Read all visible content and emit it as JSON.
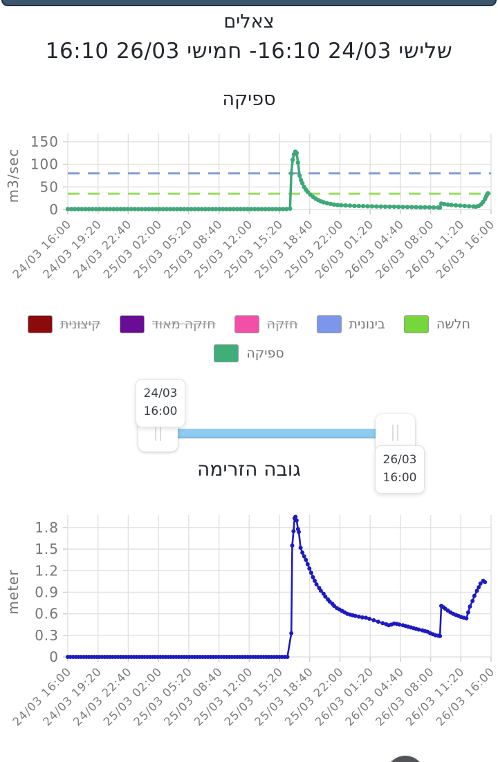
{
  "navbar": {
    "color": "#3d566e"
  },
  "header": {
    "title": "צאלים",
    "subtitle": "שלישי 24/03 16:10- חמישי 26/03 16:10"
  },
  "legend": {
    "levels": [
      {
        "key": "weak",
        "label": "חלשה",
        "color": "#76d63c",
        "struck": false
      },
      {
        "key": "medium",
        "label": "בינונית",
        "color": "#7b96ea",
        "struck": false
      },
      {
        "key": "strong",
        "label": "חזקה",
        "color": "#f24fa8",
        "struck": true
      },
      {
        "key": "very-strong",
        "label": "חזקה מאוד",
        "color": "#6a0d96",
        "struck": true
      },
      {
        "key": "extreme",
        "label": "קיצונית",
        "color": "#8b0a0a",
        "struck": true
      }
    ],
    "series": [
      {
        "key": "discharge",
        "label": "ספיקה",
        "color": "#3fae79",
        "struck": false
      }
    ]
  },
  "range_slider": {
    "start_tooltip": {
      "date": "24/03",
      "time": "16:00"
    },
    "end_tooltip": {
      "date": "26/03",
      "time": "16:00"
    },
    "track_color": "#8ecbf0"
  },
  "fab": {
    "color": "#53535a"
  },
  "chart_data": [
    {
      "id": "discharge",
      "type": "line",
      "title": "ספיקה",
      "ylabel": "m3/sec",
      "yticks": [
        0,
        50,
        100,
        150
      ],
      "ylim": [
        0,
        160
      ],
      "grid": true,
      "line_color": "#3fa878",
      "x_hours_total": 48,
      "xticklabels": [
        "24/03 16:00",
        "24/03 19:20",
        "24/03 22:40",
        "25/03 02:00",
        "25/03 05:20",
        "25/03 08:40",
        "25/03 12:00",
        "25/03 15:20",
        "25/03 18:40",
        "25/03 22:00",
        "26/03 01:20",
        "26/03 04:40",
        "26/03 08:00",
        "26/03 11:20",
        "26/03 16:00"
      ],
      "thresholds": [
        {
          "label": "בינונית",
          "value": 80,
          "color": "#7f9ed6"
        },
        {
          "label": "חלשה",
          "value": 35,
          "color": "#97df5a"
        }
      ],
      "flat": {
        "t0": 0,
        "t1": 25.0,
        "v": 1,
        "step": 0.4
      },
      "points": [
        [
          25.2,
          2
        ],
        [
          25.35,
          80
        ],
        [
          25.5,
          110
        ],
        [
          25.65,
          122
        ],
        [
          25.8,
          128
        ],
        [
          25.95,
          125
        ],
        [
          26.1,
          104
        ],
        [
          26.3,
          75
        ],
        [
          26.45,
          65
        ],
        [
          26.6,
          58
        ],
        [
          26.8,
          50
        ],
        [
          27,
          44
        ],
        [
          27.2,
          39
        ],
        [
          27.5,
          33
        ],
        [
          27.8,
          28
        ],
        [
          28.1,
          24
        ],
        [
          28.4,
          21
        ],
        [
          28.7,
          18
        ],
        [
          29,
          16
        ],
        [
          29.4,
          14
        ],
        [
          29.8,
          12.5
        ],
        [
          30.2,
          11
        ],
        [
          30.6,
          10
        ],
        [
          31,
          9.5
        ],
        [
          31.5,
          9
        ],
        [
          32,
          8.5
        ],
        [
          32.5,
          8
        ],
        [
          33,
          7.8
        ],
        [
          33.5,
          7.5
        ],
        [
          34,
          7.2
        ],
        [
          34.5,
          7
        ],
        [
          35,
          6.8
        ],
        [
          35.5,
          6.6
        ],
        [
          36,
          6.5
        ],
        [
          36.5,
          6.3
        ],
        [
          37,
          6.2
        ],
        [
          37.5,
          6
        ],
        [
          38,
          5.8
        ],
        [
          38.5,
          5.6
        ],
        [
          39,
          5.5
        ],
        [
          39.5,
          5.3
        ],
        [
          40,
          5.1
        ],
        [
          40.5,
          5
        ],
        [
          41,
          4.8
        ],
        [
          41.5,
          4.6
        ],
        [
          42,
          4.4
        ],
        [
          42.2,
          4.2
        ],
        [
          42.35,
          13
        ],
        [
          42.7,
          12
        ],
        [
          43.1,
          11
        ],
        [
          43.5,
          10
        ],
        [
          44,
          9.2
        ],
        [
          44.5,
          8.5
        ],
        [
          45,
          7.8
        ],
        [
          45.5,
          7.2
        ],
        [
          46,
          6.8
        ],
        [
          46.3,
          6.4
        ],
        [
          46.6,
          8
        ],
        [
          46.9,
          12
        ],
        [
          47.1,
          17
        ],
        [
          47.3,
          23
        ],
        [
          47.45,
          29
        ],
        [
          47.55,
          33
        ],
        [
          47.65,
          36
        ]
      ]
    },
    {
      "id": "stage",
      "type": "line",
      "title": "גובה הזרימה",
      "ylabel": "meter",
      "yticks": [
        0,
        0.3,
        0.6,
        0.9,
        1.2,
        1.5,
        1.8
      ],
      "ylim": [
        0,
        1.97
      ],
      "grid": true,
      "line_color": "#1d1bc0",
      "x_hours_total": 48,
      "xticklabels": [
        "24/03 16:00",
        "24/03 19:20",
        "24/03 22:40",
        "25/03 02:00",
        "25/03 05:20",
        "25/03 08:40",
        "25/03 12:00",
        "25/03 15:20",
        "25/03 18:40",
        "25/03 22:00",
        "26/03 01:20",
        "26/03 04:40",
        "26/03 08:00",
        "26/03 11:20",
        "26/03 16:00"
      ],
      "thresholds": [],
      "flat": {
        "t0": 0,
        "t1": 25.1,
        "v": 0,
        "step": 0.3
      },
      "points": [
        [
          25.35,
          0.33
        ],
        [
          25.45,
          1.55
        ],
        [
          25.6,
          1.75
        ],
        [
          25.72,
          1.93
        ],
        [
          25.82,
          1.95
        ],
        [
          25.95,
          1.9
        ],
        [
          26.1,
          1.78
        ],
        [
          26.2,
          1.74
        ],
        [
          26.4,
          1.52
        ],
        [
          26.6,
          1.45
        ],
        [
          26.8,
          1.4
        ],
        [
          27,
          1.35
        ],
        [
          27.2,
          1.29
        ],
        [
          27.4,
          1.23
        ],
        [
          27.6,
          1.17
        ],
        [
          27.8,
          1.11
        ],
        [
          28,
          1.06
        ],
        [
          28.2,
          1.01
        ],
        [
          28.5,
          0.96
        ],
        [
          28.7,
          0.92
        ],
        [
          29,
          0.88
        ],
        [
          29.2,
          0.84
        ],
        [
          29.5,
          0.8
        ],
        [
          29.7,
          0.77
        ],
        [
          30,
          0.74
        ],
        [
          30.2,
          0.71
        ],
        [
          30.5,
          0.68
        ],
        [
          30.8,
          0.66
        ],
        [
          31.1,
          0.64
        ],
        [
          31.4,
          0.62
        ],
        [
          31.7,
          0.6
        ],
        [
          32,
          0.59
        ],
        [
          32.3,
          0.58
        ],
        [
          32.6,
          0.57
        ],
        [
          33,
          0.56
        ],
        [
          33.4,
          0.55
        ],
        [
          33.8,
          0.545
        ],
        [
          34.2,
          0.53
        ],
        [
          34.7,
          0.51
        ],
        [
          35.2,
          0.49
        ],
        [
          35.7,
          0.47
        ],
        [
          36.1,
          0.455
        ],
        [
          36.4,
          0.44
        ],
        [
          36.7,
          0.45
        ],
        [
          37,
          0.465
        ],
        [
          37.3,
          0.46
        ],
        [
          37.6,
          0.45
        ],
        [
          38,
          0.44
        ],
        [
          38.3,
          0.43
        ],
        [
          38.6,
          0.42
        ],
        [
          38.9,
          0.41
        ],
        [
          39.2,
          0.4
        ],
        [
          39.5,
          0.39
        ],
        [
          39.8,
          0.38
        ],
        [
          40.2,
          0.37
        ],
        [
          40.5,
          0.36
        ],
        [
          40.8,
          0.35
        ],
        [
          41.1,
          0.33
        ],
        [
          41.4,
          0.315
        ],
        [
          41.7,
          0.3
        ],
        [
          42,
          0.295
        ],
        [
          42.2,
          0.29
        ],
        [
          42.35,
          0.71
        ],
        [
          42.6,
          0.69
        ],
        [
          42.8,
          0.67
        ],
        [
          43.1,
          0.645
        ],
        [
          43.4,
          0.62
        ],
        [
          43.7,
          0.6
        ],
        [
          44,
          0.585
        ],
        [
          44.3,
          0.57
        ],
        [
          44.6,
          0.555
        ],
        [
          44.9,
          0.545
        ],
        [
          45.2,
          0.535
        ],
        [
          45.4,
          0.62
        ],
        [
          45.6,
          0.7
        ],
        [
          45.9,
          0.78
        ],
        [
          46.1,
          0.85
        ],
        [
          46.4,
          0.92
        ],
        [
          46.6,
          0.97
        ],
        [
          46.8,
          1.02
        ],
        [
          47.1,
          1.06
        ],
        [
          47.3,
          1.04
        ]
      ]
    }
  ]
}
